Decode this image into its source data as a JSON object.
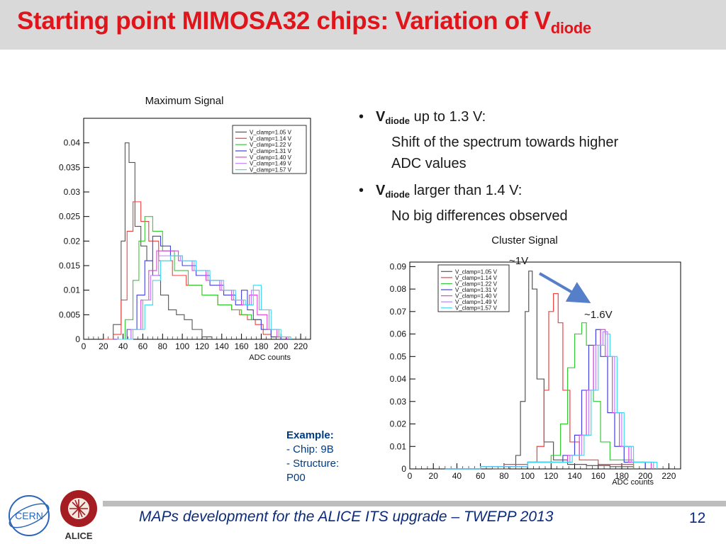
{
  "slide": {
    "title_main": "Starting point MIMOSA32 chips: Variation of V",
    "title_sub": "diode",
    "footer": "MAPs development for the ALICE ITS upgrade – TWEPP 2013",
    "page_number": "12"
  },
  "bullets": [
    {
      "v": "V",
      "v_sub": "diode",
      "head": " up to 1.3 V:",
      "lines": [
        "Shift of the spectrum towards higher",
        "ADC values"
      ]
    },
    {
      "v": "V",
      "v_sub": "diode",
      "head": " larger than 1.4 V:",
      "lines": [
        "No big differences observed"
      ]
    }
  ],
  "example": {
    "title": "Example:",
    "lines": [
      "- Chip: 9B",
      "- Structure:",
      "P00"
    ]
  },
  "annotations": {
    "low": "~1V",
    "high": "~1.6V"
  },
  "colors": {
    "title": "#e0141b",
    "footer": "#0b2a7a",
    "example": "#003a80",
    "arrow": "#4472c4"
  },
  "logos": {
    "cern": "CERN",
    "alice": "ALICE"
  },
  "chart_data": [
    {
      "type": "line",
      "title": "Maximum Signal",
      "xlabel": "ADC counts",
      "ylabel": "",
      "xlim": [
        0,
        230
      ],
      "ylim": [
        0,
        0.045
      ],
      "xticks": [
        0,
        20,
        40,
        60,
        80,
        100,
        120,
        140,
        160,
        180,
        200,
        220
      ],
      "xtick_labels": [
        "0",
        "20",
        "40",
        "60",
        "80",
        "100",
        "120",
        "140",
        "160",
        "180",
        "200",
        "220"
      ],
      "yticks": [
        0,
        0.005,
        0.01,
        0.015,
        0.02,
        0.025,
        0.03,
        0.035,
        0.04
      ],
      "ytick_labels": [
        "0",
        "0.005",
        "0.01",
        "0.015",
        "0.02",
        "0.025",
        "0.03",
        "0.035",
        "0.04"
      ],
      "legend_position": "top-right",
      "series": [
        {
          "name": "V_clamp=1.05 V",
          "color": "#555555",
          "x": [
            20,
            30,
            38,
            42,
            46,
            52,
            58,
            64,
            70,
            78,
            86,
            94,
            102,
            110,
            120,
            130
          ],
          "y": [
            0,
            0.003,
            0.02,
            0.04,
            0.036,
            0.023,
            0.019,
            0.016,
            0.013,
            0.009,
            0.006,
            0.005,
            0.004,
            0.002,
            0.0005,
            0
          ]
        },
        {
          "name": "V_clamp=1.14 V",
          "color": "#f04040",
          "x": [
            20,
            30,
            38,
            44,
            50,
            58,
            66,
            76,
            90,
            104,
            120,
            136,
            150,
            158,
            166,
            174,
            182,
            190,
            200
          ],
          "y": [
            0,
            0.001,
            0.008,
            0.022,
            0.028,
            0.024,
            0.02,
            0.016,
            0.013,
            0.011,
            0.009,
            0.007,
            0.006,
            0.005,
            0.004,
            0.003,
            0.001,
            0.0005,
            0
          ]
        },
        {
          "name": "V_clamp=1.22 V",
          "color": "#33cc33",
          "x": [
            30,
            42,
            50,
            56,
            62,
            70,
            80,
            92,
            106,
            120,
            136,
            150,
            160,
            170,
            180,
            190,
            200
          ],
          "y": [
            0,
            0.004,
            0.012,
            0.02,
            0.025,
            0.022,
            0.018,
            0.014,
            0.011,
            0.009,
            0.007,
            0.006,
            0.005,
            0.004,
            0.002,
            0.0005,
            0
          ]
        },
        {
          "name": "V_clamp=1.31 V",
          "color": "#4040e0",
          "x": [
            30,
            44,
            54,
            62,
            70,
            78,
            88,
            100,
            114,
            128,
            142,
            154,
            160,
            166,
            172,
            180,
            190,
            200
          ],
          "y": [
            0,
            0.002,
            0.009,
            0.016,
            0.021,
            0.019,
            0.017,
            0.015,
            0.013,
            0.011,
            0.009,
            0.007,
            0.01,
            0.006,
            0.004,
            0.002,
            0.0005,
            0
          ]
        },
        {
          "name": "V_clamp=1.40 V",
          "color": "#e040e0",
          "x": [
            34,
            48,
            58,
            66,
            74,
            84,
            96,
            110,
            124,
            138,
            150,
            160,
            168,
            176,
            186,
            196,
            206
          ],
          "y": [
            0,
            0.002,
            0.008,
            0.014,
            0.018,
            0.018,
            0.016,
            0.014,
            0.012,
            0.01,
            0.008,
            0.007,
            0.009,
            0.005,
            0.002,
            0.0005,
            0
          ]
        },
        {
          "name": "V_clamp=1.49 V",
          "color": "#c080ff",
          "x": [
            34,
            48,
            60,
            68,
            76,
            86,
            98,
            112,
            126,
            140,
            152,
            162,
            170,
            178,
            188,
            198,
            208
          ],
          "y": [
            0,
            0.002,
            0.008,
            0.013,
            0.017,
            0.017,
            0.016,
            0.014,
            0.012,
            0.01,
            0.008,
            0.007,
            0.01,
            0.006,
            0.002,
            0.0005,
            0
          ]
        },
        {
          "name": "V_clamp=1.57 V",
          "color": "#40d8f0",
          "x": [
            36,
            50,
            62,
            70,
            78,
            88,
            100,
            114,
            128,
            142,
            154,
            164,
            172,
            180,
            190,
            200,
            210
          ],
          "y": [
            0,
            0.002,
            0.007,
            0.012,
            0.016,
            0.017,
            0.016,
            0.014,
            0.012,
            0.01,
            0.008,
            0.007,
            0.011,
            0.006,
            0.002,
            0.0005,
            0
          ]
        }
      ]
    },
    {
      "type": "line",
      "title": "Cluster Signal",
      "xlabel": "ADC counts",
      "ylabel": "",
      "xlim": [
        0,
        230
      ],
      "ylim": [
        0,
        0.092
      ],
      "xticks": [
        0,
        20,
        40,
        60,
        80,
        100,
        120,
        140,
        160,
        180,
        200,
        220
      ],
      "xtick_labels": [
        "0",
        "20",
        "40",
        "60",
        "80",
        "100",
        "120",
        "140",
        "160",
        "180",
        "200",
        "220"
      ],
      "yticks": [
        0,
        0.01,
        0.02,
        0.03,
        0.04,
        0.05,
        0.06,
        0.07,
        0.08,
        0.09
      ],
      "ytick_labels": [
        "0",
        "0.01",
        "0.02",
        "0.03",
        "0.04",
        "0.05",
        "0.06",
        "0.07",
        "0.08",
        "0.09"
      ],
      "legend_position": "top-left",
      "series": [
        {
          "name": "V_clamp=1.05 V",
          "color": "#555555",
          "x": [
            70,
            84,
            90,
            94,
            98,
            101,
            104,
            108,
            114,
            122,
            134,
            150,
            170,
            190
          ],
          "y": [
            0,
            0.001,
            0.006,
            0.03,
            0.07,
            0.088,
            0.08,
            0.04,
            0.012,
            0.004,
            0.002,
            0.0015,
            0.001,
            0
          ],
          "stroke_width": 1.2
        },
        {
          "name": "V_clamp=1.14 V",
          "color": "#f04040",
          "x": [
            30,
            60,
            80,
            100,
            108,
            114,
            118,
            122,
            126,
            130,
            136,
            144,
            160,
            190
          ],
          "y": [
            0,
            0.001,
            0.002,
            0.003,
            0.01,
            0.035,
            0.07,
            0.078,
            0.065,
            0.035,
            0.012,
            0.004,
            0.002,
            0
          ],
          "stroke_width": 1.2
        },
        {
          "name": "V_clamp=1.22 V",
          "color": "#33cc33",
          "x": [
            30,
            60,
            100,
            120,
            128,
            134,
            140,
            146,
            150,
            156,
            162,
            170,
            190
          ],
          "y": [
            0,
            0.001,
            0.003,
            0.006,
            0.02,
            0.045,
            0.06,
            0.065,
            0.055,
            0.03,
            0.012,
            0.004,
            0
          ],
          "stroke_width": 1.2
        },
        {
          "name": "V_clamp=1.31 V",
          "color": "#4040e0",
          "x": [
            30,
            60,
            100,
            130,
            140,
            146,
            152,
            158,
            162,
            168,
            174,
            182,
            200
          ],
          "y": [
            0,
            0.001,
            0.003,
            0.006,
            0.015,
            0.035,
            0.055,
            0.062,
            0.05,
            0.025,
            0.01,
            0.003,
            0
          ],
          "stroke_width": 1.2
        },
        {
          "name": "V_clamp=1.40 V",
          "color": "#e040e0",
          "x": [
            30,
            60,
            100,
            134,
            144,
            150,
            156,
            162,
            166,
            172,
            178,
            186,
            205
          ],
          "y": [
            0,
            0.001,
            0.003,
            0.006,
            0.015,
            0.035,
            0.055,
            0.062,
            0.05,
            0.025,
            0.01,
            0.003,
            0
          ],
          "stroke_width": 1.2
        },
        {
          "name": "V_clamp=1.49 V",
          "color": "#c080ff",
          "x": [
            30,
            60,
            100,
            136,
            146,
            152,
            158,
            164,
            168,
            174,
            180,
            188,
            207
          ],
          "y": [
            0,
            0.001,
            0.003,
            0.006,
            0.015,
            0.035,
            0.055,
            0.061,
            0.05,
            0.025,
            0.01,
            0.003,
            0
          ],
          "stroke_width": 1.2
        },
        {
          "name": "V_clamp=1.57 V",
          "color": "#40d8f0",
          "x": [
            30,
            60,
            100,
            138,
            148,
            154,
            160,
            166,
            170,
            176,
            182,
            190,
            210
          ],
          "y": [
            0,
            0.001,
            0.003,
            0.006,
            0.015,
            0.035,
            0.055,
            0.06,
            0.05,
            0.025,
            0.01,
            0.003,
            0
          ],
          "stroke_width": 1.2
        }
      ]
    }
  ]
}
